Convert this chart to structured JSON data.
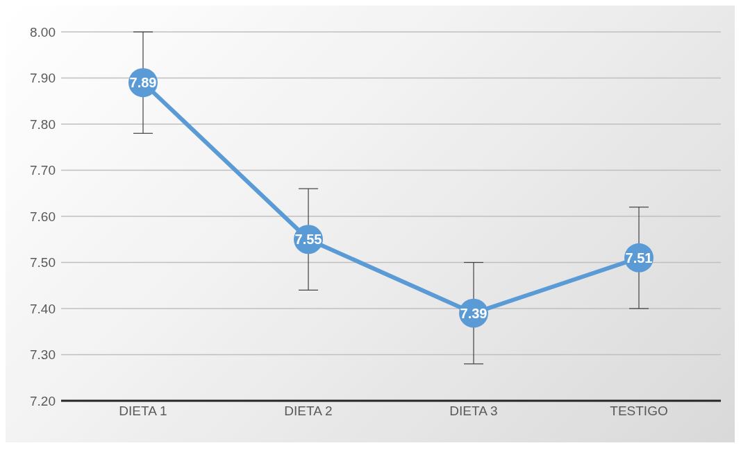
{
  "chart_data": {
    "type": "line",
    "categories": [
      "DIETA 1",
      "DIETA 2",
      "DIETA 3",
      "TESTIGO"
    ],
    "series": [
      {
        "color": "#5b9bd5",
        "values": [
          7.89,
          7.55,
          7.39,
          7.51
        ],
        "errors": [
          0.11,
          0.11,
          0.11,
          0.11
        ]
      }
    ],
    "ylim": [
      7.2,
      8.0
    ],
    "yticks": [
      {
        "value": 7.2,
        "label": "7.20"
      },
      {
        "value": 7.3,
        "label": "7.30"
      },
      {
        "value": 7.4,
        "label": "7.40"
      },
      {
        "value": 7.5,
        "label": "7.50"
      },
      {
        "value": 7.6,
        "label": "7.60"
      },
      {
        "value": 7.7,
        "label": "7.70"
      },
      {
        "value": 7.8,
        "label": "7.80"
      },
      {
        "value": 7.9,
        "label": "7.90"
      },
      {
        "value": 8.0,
        "label": "8.00"
      }
    ],
    "grid": "y",
    "marker": "circle",
    "line_style": "solid",
    "data_labels": true
  }
}
